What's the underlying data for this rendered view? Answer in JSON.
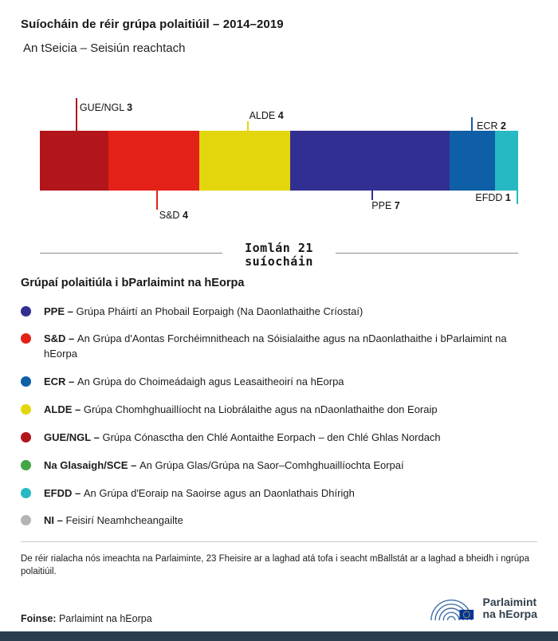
{
  "chart_data": {
    "type": "bar",
    "orientation": "horizontal-stacked",
    "title": "Suíocháin de réir grúpa polaitiúil – 2014–2019",
    "subtitle": "An tSeicia – Seisiún reachtach",
    "total_seats": 21,
    "total_label_line1": "Iomlán 21",
    "total_label_line2": "suíocháin",
    "segments": [
      {
        "group": "GUE/NGL",
        "seats": 3,
        "color": "#b2161b",
        "label_side": "above"
      },
      {
        "group": "S&D",
        "seats": 4,
        "color": "#e32119",
        "label_side": "below"
      },
      {
        "group": "ALDE",
        "seats": 4,
        "color": "#e3d60c",
        "label_side": "above"
      },
      {
        "group": "PPE",
        "seats": 7,
        "color": "#322f92",
        "label_side": "below"
      },
      {
        "group": "ECR",
        "seats": 2,
        "color": "#0e5fa5",
        "label_side": "above"
      },
      {
        "group": "EFDD",
        "seats": 1,
        "color": "#27b9c3",
        "label_side": "below"
      }
    ]
  },
  "legend": {
    "heading": "Grúpaí polaitiúla i bParlaimint na hEorpa",
    "items": [
      {
        "abbr": "PPE –",
        "text": "Grúpa Pháirtí an Phobail Eorpaigh (Na Daonlathaithe Críostaí)",
        "color": "#322f92"
      },
      {
        "abbr": "S&D –",
        "text": "An Grúpa d'Aontas Forchéimnitheach na Sóisialaithe agus na nDaonlathaithe i bParlaimint na hEorpa",
        "color": "#e32119"
      },
      {
        "abbr": "ECR –",
        "text": "An Grúpa do Choimeádaigh agus Leasaitheoirí na hEorpa",
        "color": "#0e5fa5"
      },
      {
        "abbr": "ALDE –",
        "text": "Grúpa Chomhghuaillíocht na Liobrálaithe agus na nDaonlathaithe don Eoraip",
        "color": "#e3d60c"
      },
      {
        "abbr": "GUE/NGL –",
        "text": "Grúpa Cónasctha den Chlé Aontaithe Eorpach – den Chlé Ghlas Nordach",
        "color": "#b2161b"
      },
      {
        "abbr": "Na Glasaigh/SCE –",
        "text": "An Grúpa Glas/Grúpa na Saor–Comhghuaillíochta Eorpaí",
        "color": "#43a546"
      },
      {
        "abbr": "EFDD –",
        "text": "An Grúpa d'Eoraip na Saoirse agus an Daonlathais Dhírigh",
        "color": "#27b9c3"
      },
      {
        "abbr": "NI –",
        "text": "Feisirí Neamhcheangailte",
        "color": "#b4b4b4"
      }
    ]
  },
  "footnote": "De réir rialacha nós imeachta na Parlaiminte, 23 Fheisire ar a laghad atá tofa i seacht mBallstát ar a laghad a bheidh i ngrúpa polaitiúil.",
  "source": {
    "label": "Foinse:",
    "text": "Parlaimint na hEorpa"
  },
  "logo": {
    "line1": "Parlaimint",
    "line2": "na hEorpa"
  }
}
